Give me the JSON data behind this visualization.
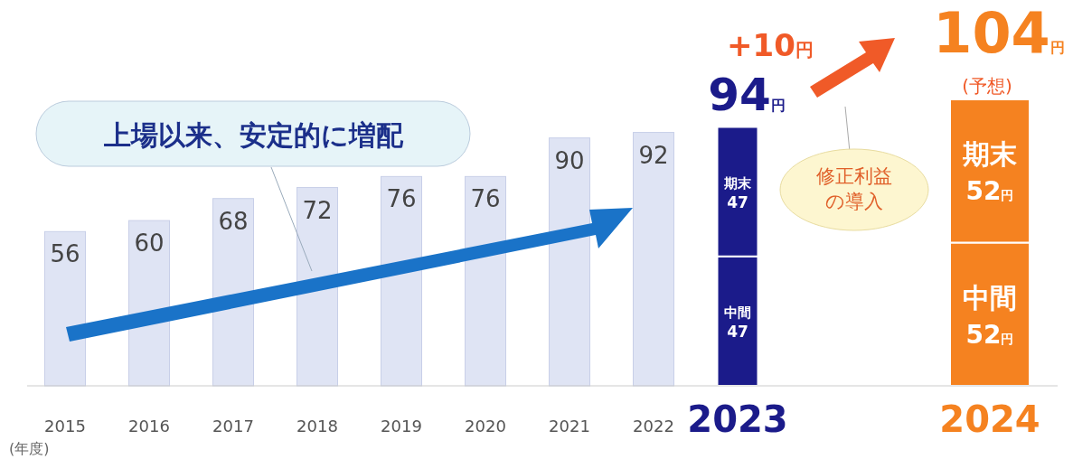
{
  "chart_data": {
    "type": "bar",
    "stacked": true,
    "categories": [
      "2015",
      "2016",
      "2017",
      "2018",
      "2019",
      "2020",
      "2021",
      "2022",
      "2023",
      null,
      null,
      "2024"
    ],
    "series": [
      {
        "color": "#dfe4f4",
        "values": [
          56,
          60,
          68,
          72,
          76,
          76,
          90,
          92,
          null,
          null,
          null,
          null
        ],
        "value_labels": [
          "56",
          "60",
          "68",
          "72",
          "76",
          "76",
          "90",
          "92",
          null,
          null,
          null,
          null
        ]
      },
      {
        "name": "中間",
        "colors": [
          null,
          null,
          null,
          null,
          null,
          null,
          null,
          null,
          "#1b1b8a",
          null,
          null,
          "#f58220"
        ],
        "values": [
          null,
          null,
          null,
          null,
          null,
          null,
          null,
          null,
          47,
          null,
          null,
          52
        ],
        "value_labels": [
          null,
          null,
          null,
          null,
          null,
          null,
          null,
          null,
          "47",
          null,
          null,
          "52円"
        ]
      },
      {
        "name": "期末",
        "colors": [
          null,
          null,
          null,
          null,
          null,
          null,
          null,
          null,
          "#1b1b8a",
          null,
          null,
          "#f58220"
        ],
        "values": [
          null,
          null,
          null,
          null,
          null,
          null,
          null,
          null,
          47,
          null,
          null,
          52
        ],
        "value_labels": [
          null,
          null,
          null,
          null,
          null,
          null,
          null,
          null,
          "47",
          null,
          null,
          "52円"
        ]
      }
    ],
    "totals": [
      null,
      null,
      null,
      null,
      null,
      null,
      null,
      null,
      "94円",
      null,
      null,
      "104円"
    ],
    "annotations": [
      "上場以来、安定的に増配",
      "+10円",
      "(予想)",
      "修正利益の導入",
      "(年度)"
    ]
  }
}
